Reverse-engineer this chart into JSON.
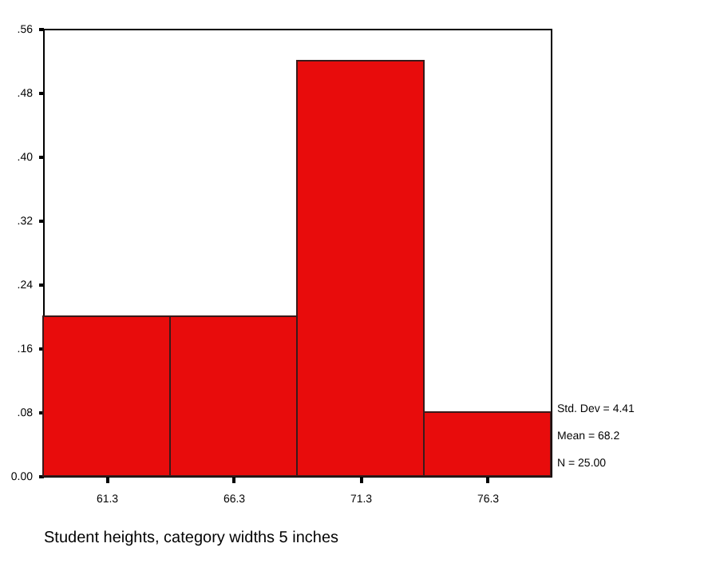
{
  "chart_data": {
    "type": "histogram",
    "xlabel": "Student heights, category widths 5 inches",
    "bins": [
      58.8,
      63.8,
      68.8,
      73.8,
      78.8
    ],
    "values": [
      0.2,
      0.2,
      0.52,
      0.08
    ],
    "color": "#e80c0c",
    "xlim": [
      58.8,
      78.8
    ],
    "xticks": [
      61.3,
      66.3,
      71.3,
      76.3
    ],
    "ylim": [
      0,
      0.56
    ],
    "yticks": [
      {
        "value": 0,
        "label": "0.00"
      },
      {
        "value": 0.08,
        "label": ".08"
      },
      {
        "value": 0.16,
        "label": ".16"
      },
      {
        "value": 0.24,
        "label": ".24"
      },
      {
        "value": 0.32,
        "label": ".32"
      },
      {
        "value": 0.4,
        "label": ".40"
      },
      {
        "value": 0.48,
        "label": ".48"
      },
      {
        "value": 0.56,
        "label": ".56"
      }
    ],
    "grid": false,
    "annotations": [
      "Std. Dev = 4.41",
      "Mean = 68.2",
      "N = 25.00"
    ]
  }
}
